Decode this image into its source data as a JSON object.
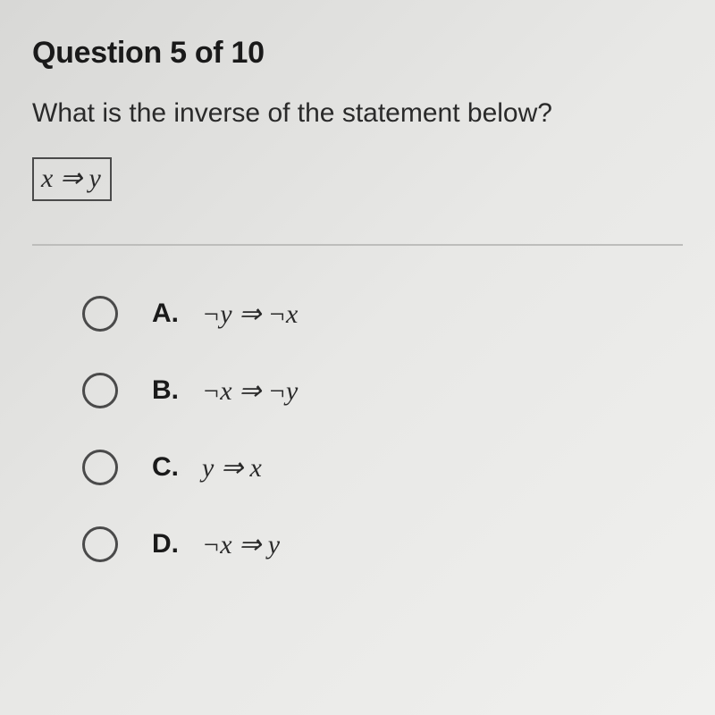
{
  "header": {
    "text": "Question 5 of 10"
  },
  "prompt": {
    "text": "What is the inverse of the statement below?"
  },
  "statement": {
    "formula": "x ⇒ y"
  },
  "options": [
    {
      "letter": "A.",
      "formula": "¬y ⇒ ¬x"
    },
    {
      "letter": "B.",
      "formula": "¬x ⇒ ¬y"
    },
    {
      "letter": "C.",
      "formula": "y ⇒ x"
    },
    {
      "letter": "D.",
      "formula": "¬x ⇒ y"
    }
  ],
  "style": {
    "background_gradient": [
      "#d8d8d6",
      "#e8e8e6",
      "#f0f0ee"
    ],
    "header_fontsize": 34,
    "header_weight": 700,
    "header_color": "#1a1a1a",
    "prompt_fontsize": 30,
    "prompt_color": "#2a2a2a",
    "stmt_border_color": "#4a4a4a",
    "stmt_fontsize": 30,
    "divider_color": "#bdbdbb",
    "radio_size": 40,
    "radio_border_color": "#4a4a4a",
    "option_letter_fontsize": 30,
    "option_letter_weight": 700,
    "option_formula_fontsize": 30,
    "option_spacing": 46
  }
}
